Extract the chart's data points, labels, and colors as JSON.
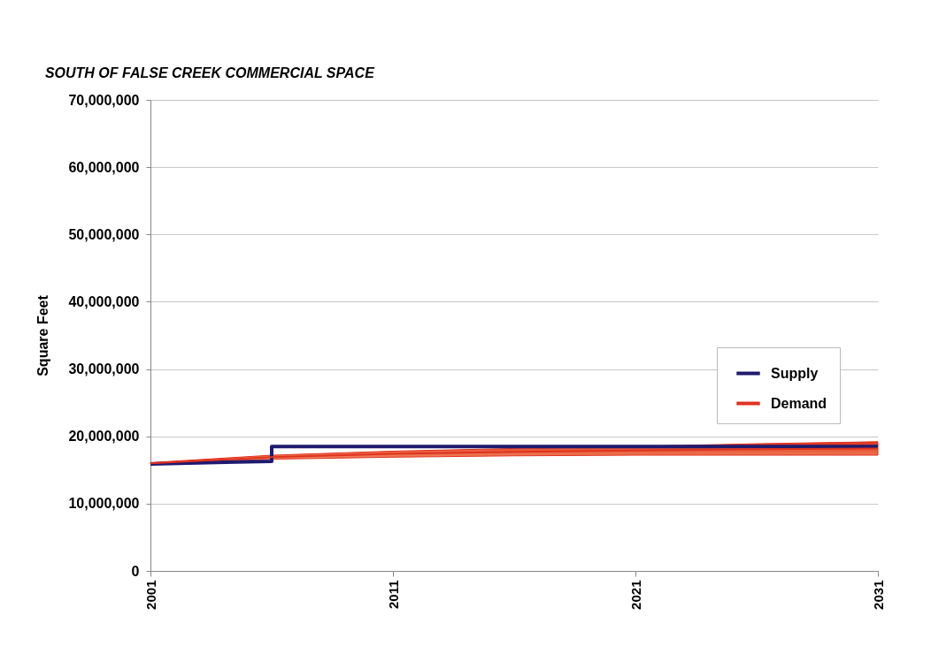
{
  "chart_data": {
    "type": "line",
    "title": "SOUTH OF FALSE CREEK COMMERCIAL SPACE",
    "ylabel": "Square Feet",
    "xlim": [
      2001,
      2031
    ],
    "xticks": [
      2001,
      2011,
      2021,
      2031
    ],
    "ylim": [
      0,
      70000000
    ],
    "yticks": [
      0,
      {
        "value": 10000000,
        "label": "10,000,000"
      },
      {
        "value": 20000000,
        "label": "20,000,000"
      },
      {
        "value": 30000000,
        "label": "30,000,000"
      },
      {
        "value": 40000000,
        "label": "40,000,000"
      },
      {
        "value": 50000000,
        "label": "50,000,000"
      },
      {
        "value": 60000000,
        "label": "60,000,000"
      },
      {
        "value": 70000000,
        "label": "70,000,000"
      }
    ],
    "grid": "y",
    "legend": "right",
    "series": [
      {
        "name": "Supply",
        "color": "#1f1a6e",
        "x": [
          2001,
          2006,
          2006,
          2031
        ],
        "values": [
          15900000,
          16300000,
          18500000,
          18500000
        ]
      },
      {
        "name": "Demand",
        "color": "#e0321e",
        "x": [
          2001,
          2006,
          2011,
          2016,
          2021,
          2026,
          2031
        ],
        "values": [
          16000000,
          16900000,
          17400000,
          17700000,
          17900000,
          18100000,
          18200000
        ],
        "lower": [
          15900000,
          16600000,
          16900000,
          17100000,
          17200000,
          17200000,
          17200000
        ],
        "upper": [
          16100000,
          17200000,
          17800000,
          18200000,
          18500000,
          18900000,
          19200000
        ]
      }
    ]
  }
}
